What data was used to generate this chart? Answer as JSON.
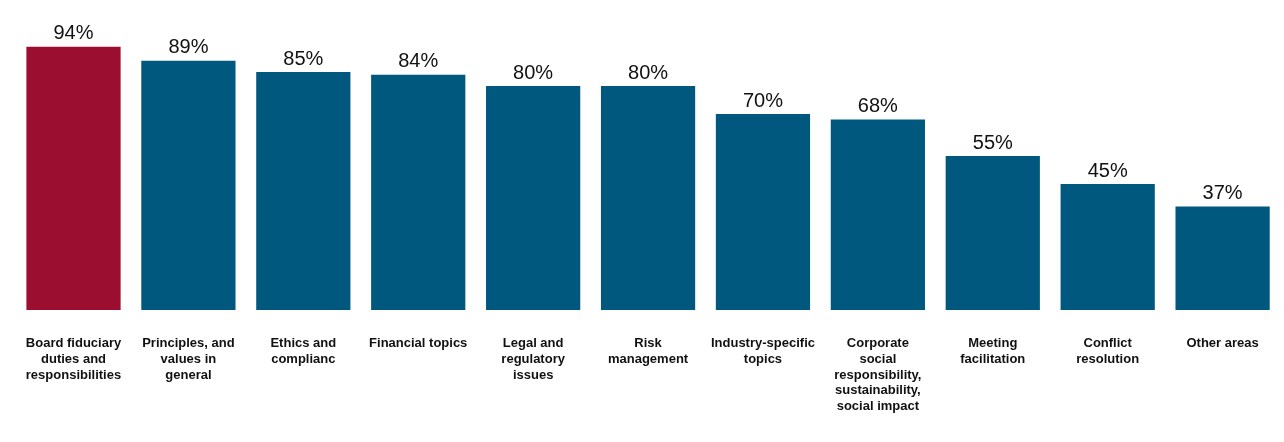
{
  "chart_data": {
    "type": "bar",
    "categories": [
      "Board fiduciary duties and responsibilities",
      "Principles, and values in general",
      "Ethics and complianc",
      "Financial topics",
      "Legal and regulatory issues",
      "Risk management",
      "Industry-specific topics",
      "Corporate social responsibility, sustainability, social impact",
      "Meeting facilitation",
      "Conflict resolution",
      "Other areas"
    ],
    "values": [
      94,
      89,
      85,
      84,
      80,
      80,
      70,
      68,
      55,
      45,
      37
    ],
    "colors": [
      "#9b0e30",
      "#00587e",
      "#00587e",
      "#00587e",
      "#00587e",
      "#00587e",
      "#00587e",
      "#00587e",
      "#00587e",
      "#00587e",
      "#00587e"
    ],
    "value_labels": [
      "94%",
      "89%",
      "85%",
      "84%",
      "80%",
      "80%",
      "70%",
      "68%",
      "55%",
      "45%",
      "37%"
    ],
    "grid": false,
    "legend": false
  }
}
